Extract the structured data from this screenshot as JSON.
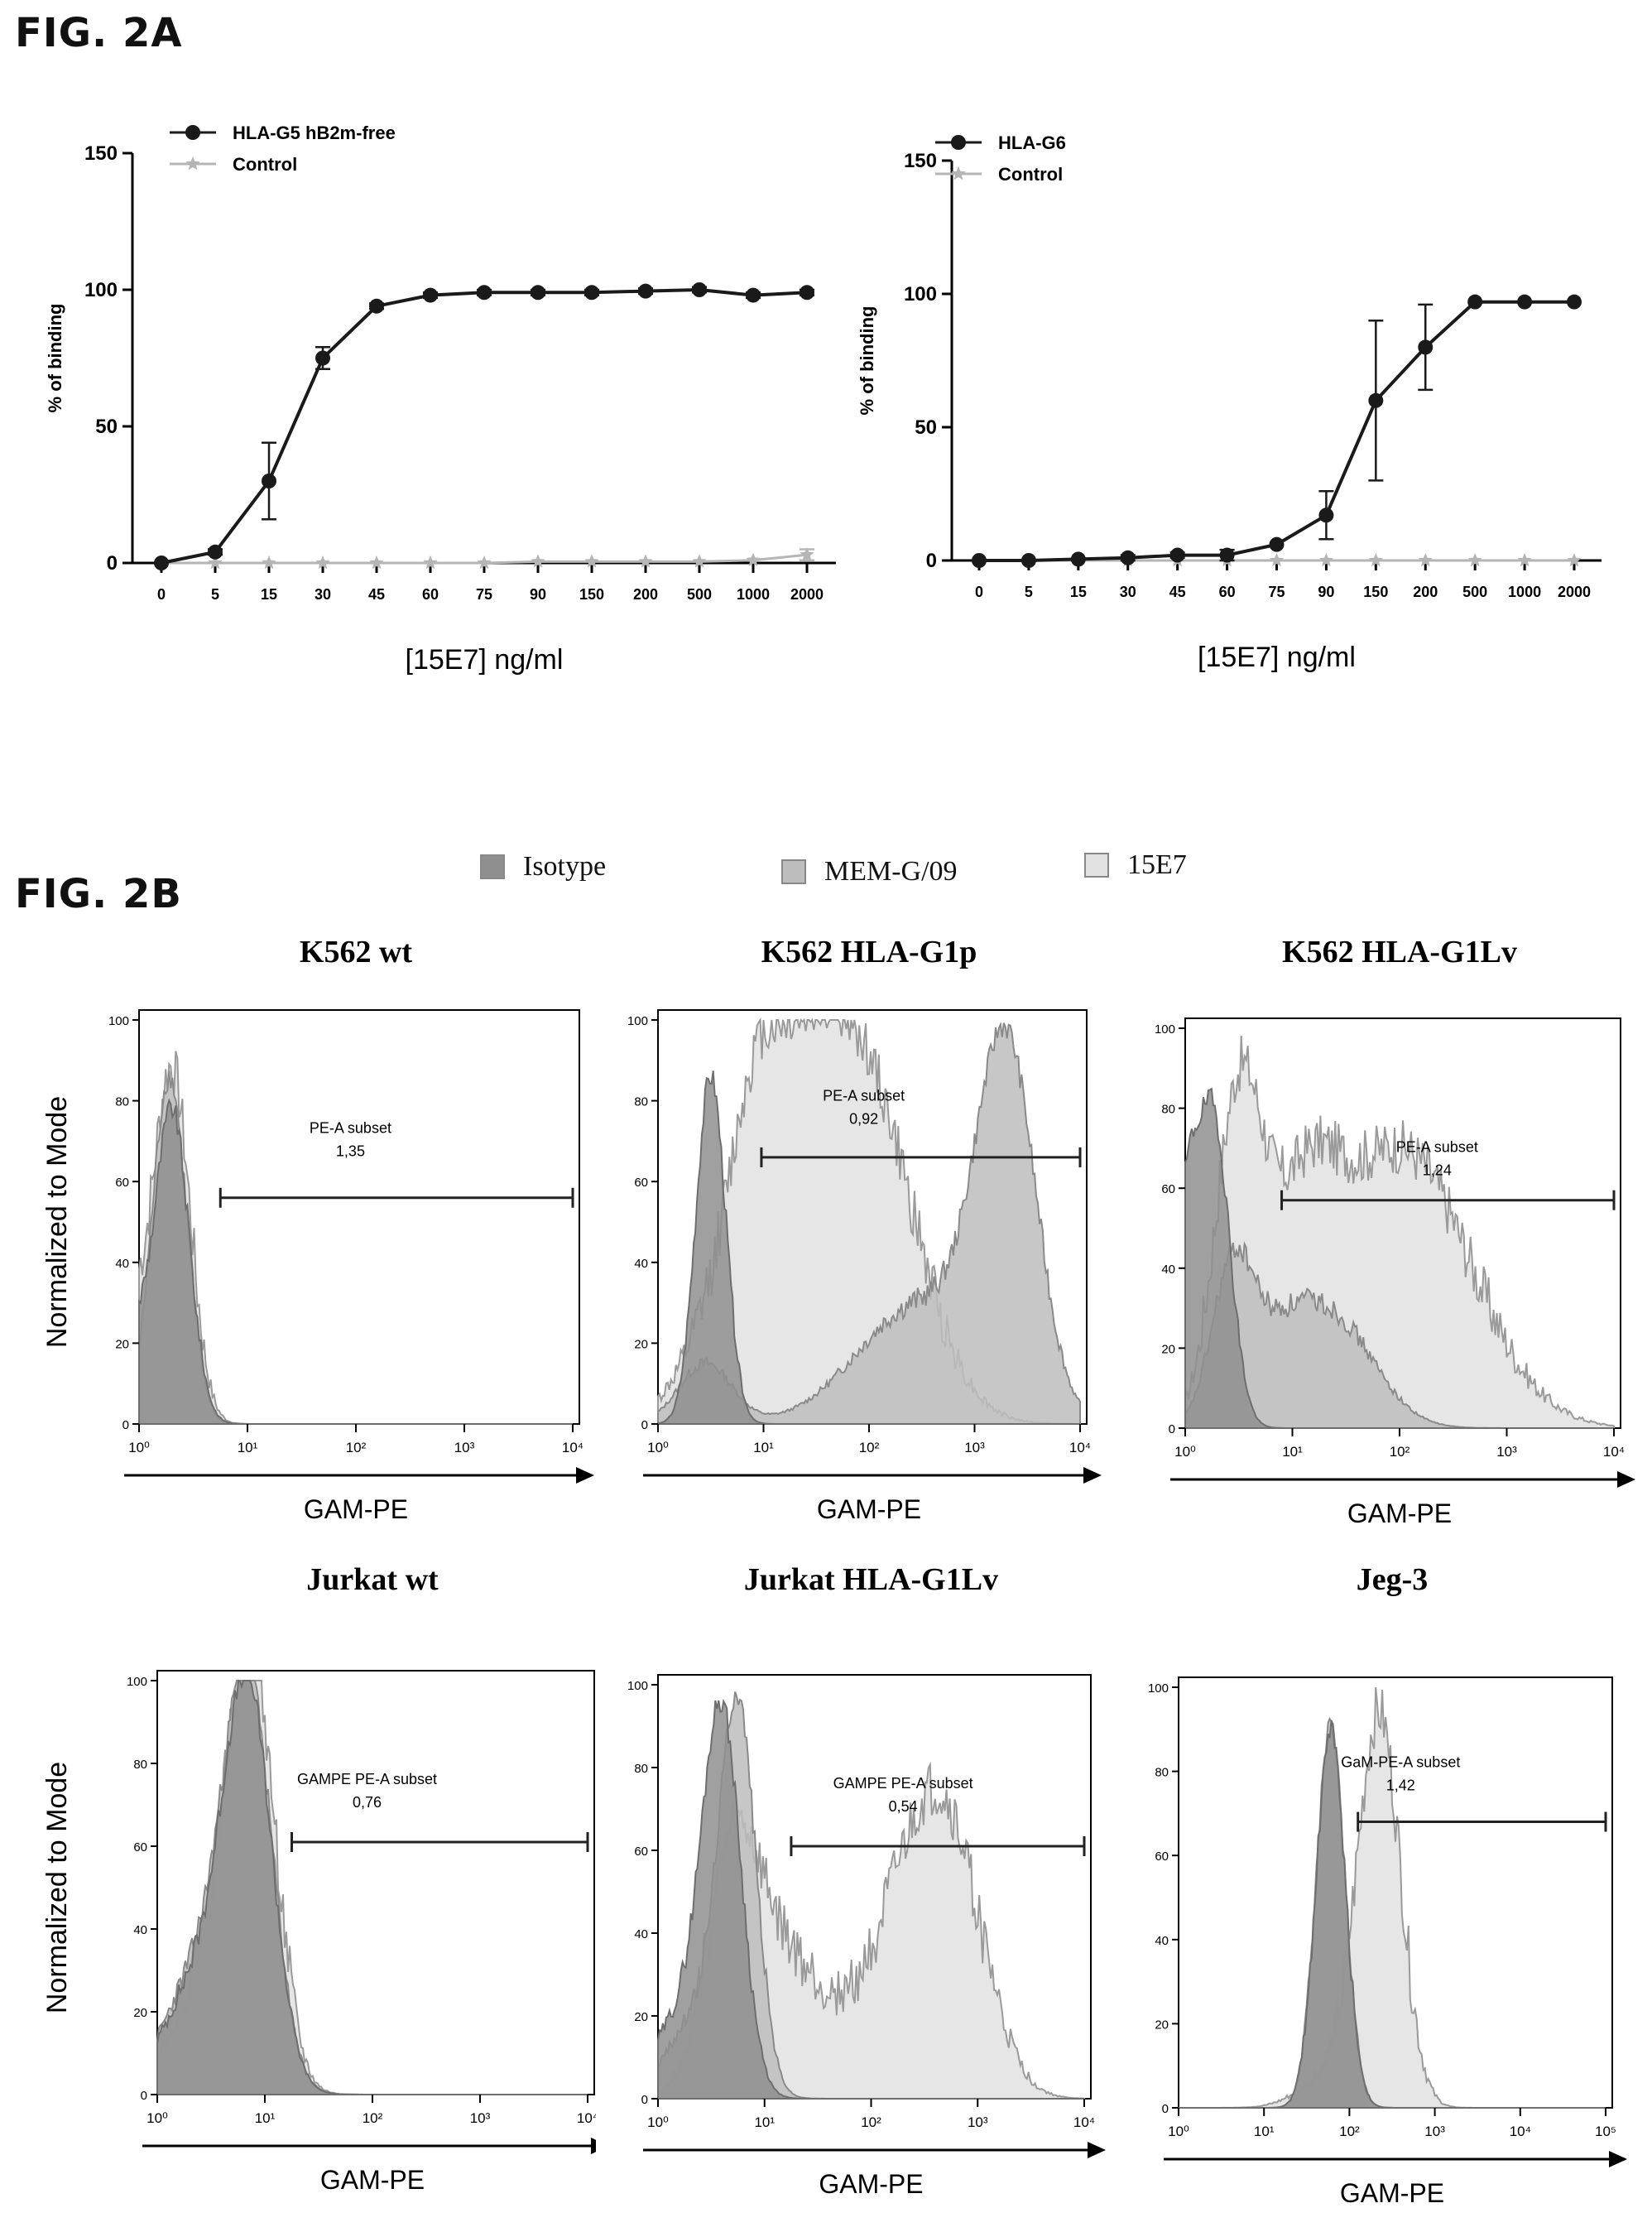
{
  "fig2a_label": "FIG. 2A",
  "fig2b_label": "FIG. 2B",
  "colors": {
    "series": "#1a1a1a",
    "control": "#b5b5b5",
    "isotype": "#8f8f8f",
    "mem": "#bdbdbd",
    "e7": "#e2e2e2"
  },
  "chart_data": [
    {
      "type": "line",
      "x_labels": [
        "0",
        "5",
        "15",
        "30",
        "45",
        "60",
        "75",
        "90",
        "150",
        "200",
        "500",
        "1000",
        "2000"
      ],
      "xlabel": "[15E7] ng/ml",
      "ylabel": "% of binding",
      "ylim": [
        0,
        150
      ],
      "yticks": [
        "0",
        "50",
        "100",
        "150"
      ],
      "legend_position": "top-left",
      "series": [
        {
          "name": "HLA-G5 hB2m-free",
          "values": [
            0,
            4,
            30,
            75,
            94,
            98,
            99,
            99,
            99,
            99.5,
            100,
            98,
            99
          ],
          "err": [
            0,
            1,
            14,
            4,
            1,
            1,
            1,
            1,
            1,
            1,
            1,
            1,
            1
          ],
          "marker": "circle"
        },
        {
          "name": "Control",
          "values": [
            0,
            0,
            0,
            0,
            0,
            0,
            0,
            0.5,
            0.5,
            0.5,
            0.5,
            1,
            3
          ],
          "err": [
            0,
            0,
            0,
            0,
            0,
            0,
            0,
            0,
            0,
            0,
            0,
            0,
            2
          ],
          "marker": "star"
        }
      ]
    },
    {
      "type": "line",
      "x_labels": [
        "0",
        "5",
        "15",
        "30",
        "45",
        "60",
        "75",
        "90",
        "150",
        "200",
        "500",
        "1000",
        "2000"
      ],
      "xlabel": "[15E7] ng/ml",
      "ylabel": "% of binding",
      "ylim": [
        0,
        150
      ],
      "yticks": [
        "0",
        "50",
        "100",
        "150"
      ],
      "legend_position": "top-left",
      "series": [
        {
          "name": "HLA-G6",
          "values": [
            0,
            0,
            0.5,
            1,
            2,
            2,
            6,
            17,
            60,
            80,
            97,
            97,
            97
          ],
          "err": [
            0,
            0,
            0,
            1,
            1,
            2,
            0,
            9,
            30,
            16,
            0,
            0,
            0
          ],
          "marker": "circle"
        },
        {
          "name": "Control",
          "values": [
            0,
            0,
            0,
            0,
            0,
            0,
            0,
            0,
            0,
            0,
            0,
            0,
            0
          ],
          "err": [
            0,
            0,
            0,
            0,
            0,
            0,
            0,
            0,
            0,
            0,
            0,
            0,
            0
          ],
          "marker": "star"
        }
      ]
    }
  ],
  "histograms": {
    "legend": [
      "Isotype",
      "MEM-G/09",
      "15E7"
    ],
    "xlabel": "GAM-PE",
    "ylabel": "Normalized to Mode",
    "yticks": [
      "0",
      "20",
      "40",
      "60",
      "80",
      "100"
    ],
    "panels": [
      {
        "title": "K562 wt",
        "gate_label": "PE-A subset",
        "gate_value": "1,35"
      },
      {
        "title": "K562 HLA-G1p",
        "gate_label": "PE-A subset",
        "gate_value": "0,92"
      },
      {
        "title": "K562 HLA-G1Lv",
        "gate_label": "PE-A subset",
        "gate_value": "1,24"
      },
      {
        "title": "Jurkat wt",
        "gate_label": "GAMPE PE-A subset",
        "gate_value": "0,76"
      },
      {
        "title": "Jurkat HLA-G1Lv",
        "gate_label": "GAMPE PE-A subset",
        "gate_value": "0,54"
      },
      {
        "title": "Jeg-3",
        "gate_label": "GaM-PE-A subset",
        "gate_value": "1,42"
      }
    ]
  }
}
